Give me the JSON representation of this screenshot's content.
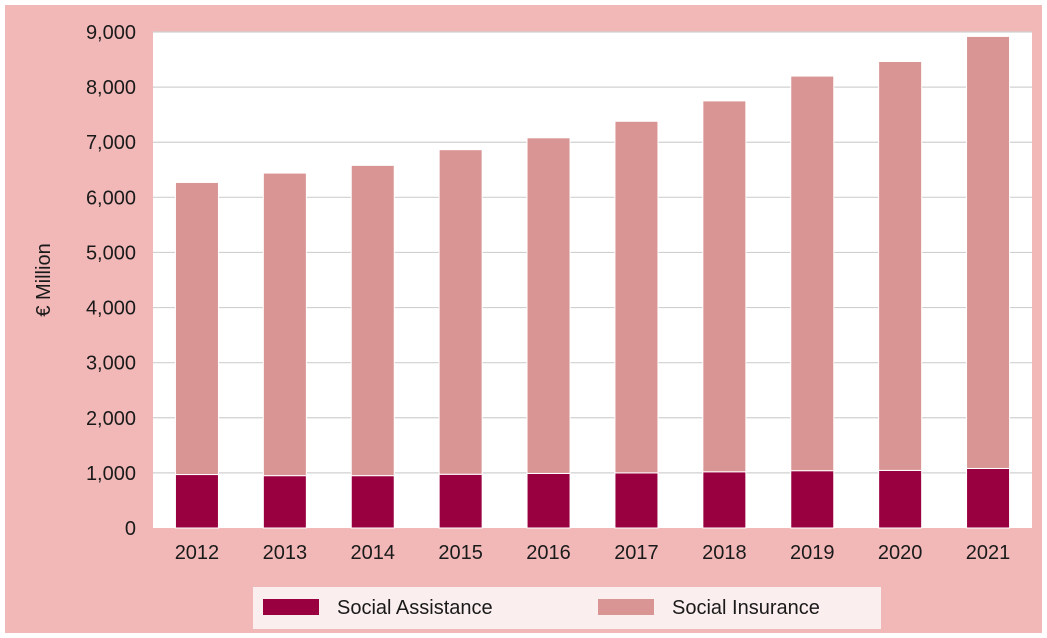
{
  "chart_data": {
    "type": "bar",
    "stacked": true,
    "categories": [
      "2012",
      "2013",
      "2014",
      "2015",
      "2016",
      "2017",
      "2018",
      "2019",
      "2020",
      "2021"
    ],
    "series": [
      {
        "name": "Social Assistance",
        "color": "#990040",
        "values": [
          970,
          950,
          950,
          975,
          990,
          1000,
          1020,
          1040,
          1045,
          1080
        ]
      },
      {
        "name": "Social Insurance",
        "color": "#d99594",
        "values": [
          5300,
          5490,
          5630,
          5890,
          6090,
          6380,
          6730,
          7160,
          7420,
          7840
        ]
      }
    ],
    "title": "",
    "xlabel": "",
    "ylabel": "€ Million",
    "ylim": [
      0,
      9000
    ],
    "yticks": [
      0,
      1000,
      2000,
      3000,
      4000,
      5000,
      6000,
      7000,
      8000,
      9000
    ],
    "ytick_labels": [
      "0",
      "1,000",
      "2,000",
      "3,000",
      "4,000",
      "5,000",
      "6,000",
      "7,000",
      "8,000",
      "9,000"
    ],
    "grid": true,
    "legend_position": "bottom"
  },
  "colors": {
    "background": "#f2b8b8",
    "plot_area": "#ffffff",
    "gridline": "#d0d0d0",
    "legend_box": "#fbeeee"
  }
}
